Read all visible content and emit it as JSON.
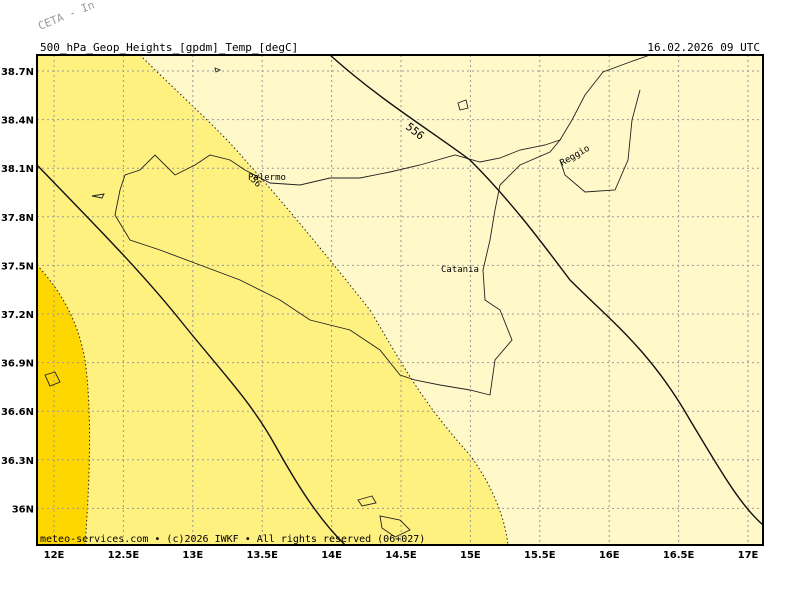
{
  "watermark": "CETA - In",
  "header": {
    "title": "500_hPa_Geop_Heights_[gpdm]_Temp_[degC]",
    "time": "16.02.2026 09 UTC"
  },
  "x_axis": {
    "ticks": [
      "12E",
      "12.5E",
      "13E",
      "13.5E",
      "14E",
      "14.5E",
      "15E",
      "15.5E",
      "16E",
      "16.5E",
      "17E"
    ]
  },
  "y_axis": {
    "ticks": [
      "38.7N",
      "38.4N",
      "38.1N",
      "37.8N",
      "37.5N",
      "37.2N",
      "36.9N",
      "36.6N",
      "36.3N",
      "36N"
    ]
  },
  "places": [
    "Palermo",
    "Catania",
    "Reggio"
  ],
  "contour_labels": [
    "556",
    "56"
  ],
  "footer": "meteo-services.com • (c)2026 IWKF • All rights reserved (06+027)"
}
